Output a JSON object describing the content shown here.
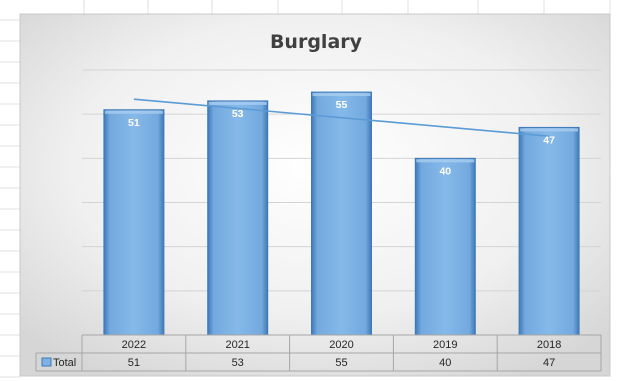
{
  "chart_data": {
    "type": "bar",
    "title": "Burglary",
    "categories": [
      "2022",
      "2021",
      "2020",
      "2019",
      "2018"
    ],
    "series": [
      {
        "name": "Total",
        "values": [
          51,
          53,
          55,
          40,
          47
        ]
      }
    ],
    "trendline": {
      "type": "linear",
      "series": "Total"
    },
    "data_table": {
      "row_label": "Total",
      "values": [
        "51",
        "53",
        "55",
        "40",
        "47"
      ]
    },
    "ylim": [
      0,
      60
    ],
    "grid": true,
    "legend": "none",
    "colors": {
      "bar_fill": "#7EB2E4",
      "bar_edge": "#3F79B8",
      "trendline": "#5B9BD5",
      "gridline": "#D4D4D4",
      "plot_bg_center": "#FFFFFF",
      "plot_bg_edge": "#D8D8D8"
    }
  }
}
